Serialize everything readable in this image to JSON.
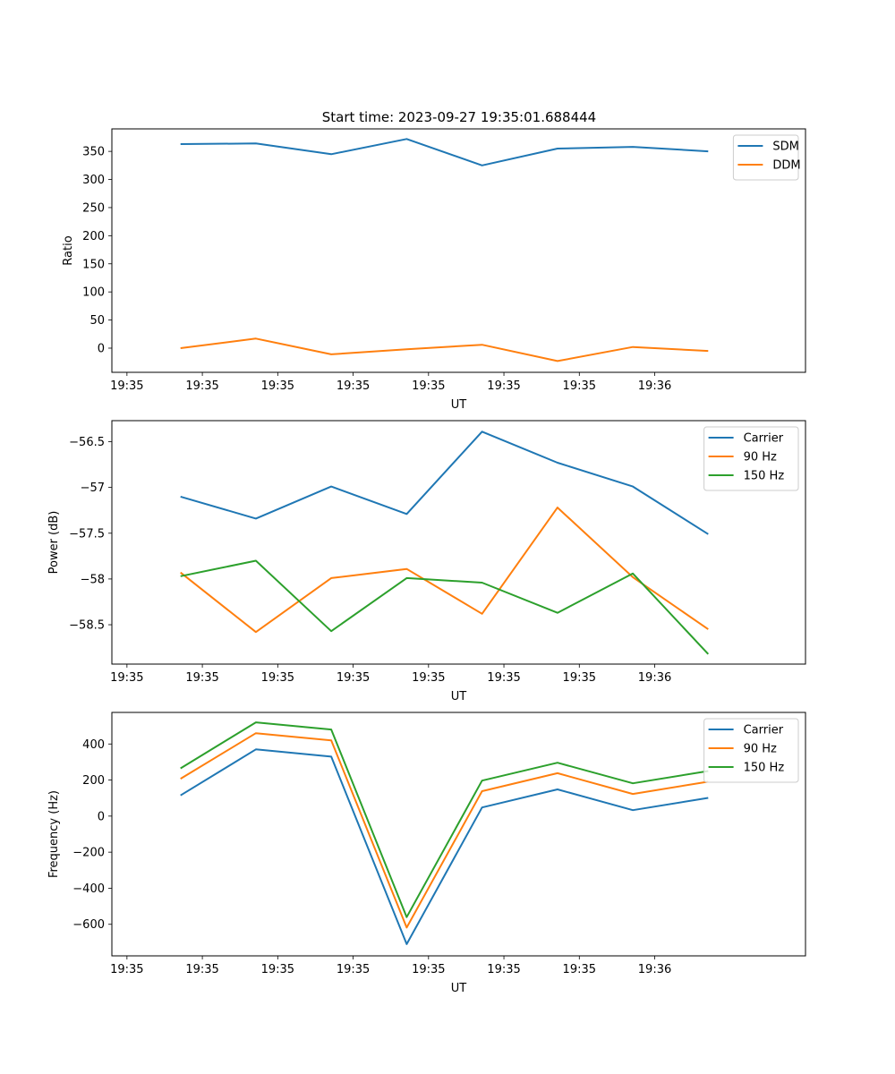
{
  "title": "Start time: 2023-09-27 19:35:01.688444",
  "colors": {
    "blue": "#1f77b4",
    "orange": "#ff7f0e",
    "green": "#2ca02c"
  },
  "chart_data": [
    {
      "type": "line",
      "title": "Start time: 2023-09-27 19:35:01.688444",
      "xlabel": "UT",
      "ylabel": "Ratio",
      "x_tick_labels": [
        "19:35",
        "19:35",
        "19:35",
        "19:35",
        "19:35",
        "19:35",
        "19:35"
      ],
      "x_tick_end_label": "19:36",
      "xlim": [
        -0.2,
        9.0
      ],
      "x": [
        0.71,
        1.71,
        2.71,
        3.71,
        4.71,
        5.71,
        6.71,
        7.71
      ],
      "ylim": [
        -43,
        390
      ],
      "yticks": [
        0,
        50,
        100,
        150,
        200,
        250,
        300,
        350
      ],
      "legend_position": "upper right",
      "series": [
        {
          "name": "SDM",
          "color": "#1f77b4",
          "values": [
            363,
            364,
            345,
            372,
            325,
            355,
            358,
            350
          ]
        },
        {
          "name": "DDM",
          "color": "#ff7f0e",
          "values": [
            0,
            17,
            -11,
            -2,
            6,
            -23,
            2,
            -5
          ]
        }
      ]
    },
    {
      "type": "line",
      "xlabel": "UT",
      "ylabel": "Power (dB)",
      "x_tick_labels": [
        "19:35",
        "19:35",
        "19:35",
        "19:35",
        "19:35",
        "19:35",
        "19:35"
      ],
      "x_tick_end_label": "19:36",
      "xlim": [
        -0.2,
        9.0
      ],
      "x": [
        0.71,
        1.71,
        2.71,
        3.71,
        4.71,
        5.71,
        6.71,
        7.71
      ],
      "ylim": [
        -58.93,
        -56.27
      ],
      "yticks": [
        -58.5,
        -58.0,
        -57.5,
        -57.0,
        -56.5
      ],
      "legend_position": "upper right",
      "series": [
        {
          "name": "Carrier",
          "color": "#1f77b4",
          "values": [
            -57.1,
            -57.34,
            -56.99,
            -57.29,
            -56.39,
            -56.73,
            -56.99,
            -57.51
          ]
        },
        {
          "name": "90 Hz",
          "color": "#ff7f0e",
          "values": [
            -57.93,
            -58.58,
            -57.99,
            -57.89,
            -58.38,
            -57.22,
            -57.98,
            -58.55
          ]
        },
        {
          "name": "150 Hz",
          "color": "#2ca02c",
          "values": [
            -57.97,
            -57.8,
            -58.57,
            -57.99,
            -58.04,
            -58.37,
            -57.94,
            -58.82
          ]
        }
      ]
    },
    {
      "type": "line",
      "xlabel": "UT",
      "ylabel": "Frequency (Hz)",
      "x_tick_labels": [
        "19:35",
        "19:35",
        "19:35",
        "19:35",
        "19:35",
        "19:35",
        "19:35"
      ],
      "x_tick_end_label": "19:36",
      "xlim": [
        -0.2,
        9.0
      ],
      "x": [
        0.71,
        1.71,
        2.71,
        3.71,
        4.71,
        5.71,
        6.71,
        7.71
      ],
      "ylim": [
        -775,
        575
      ],
      "yticks": [
        -600,
        -400,
        -200,
        0,
        200,
        400
      ],
      "legend_position": "upper right",
      "series": [
        {
          "name": "Carrier",
          "color": "#1f77b4",
          "values": [
            115,
            370,
            330,
            -710,
            48,
            148,
            33,
            101
          ]
        },
        {
          "name": "90 Hz",
          "color": "#ff7f0e",
          "values": [
            207,
            460,
            420,
            -618,
            138,
            238,
            123,
            191
          ]
        },
        {
          "name": "150 Hz",
          "color": "#2ca02c",
          "values": [
            265,
            520,
            480,
            -560,
            197,
            296,
            182,
            250
          ]
        }
      ]
    }
  ]
}
